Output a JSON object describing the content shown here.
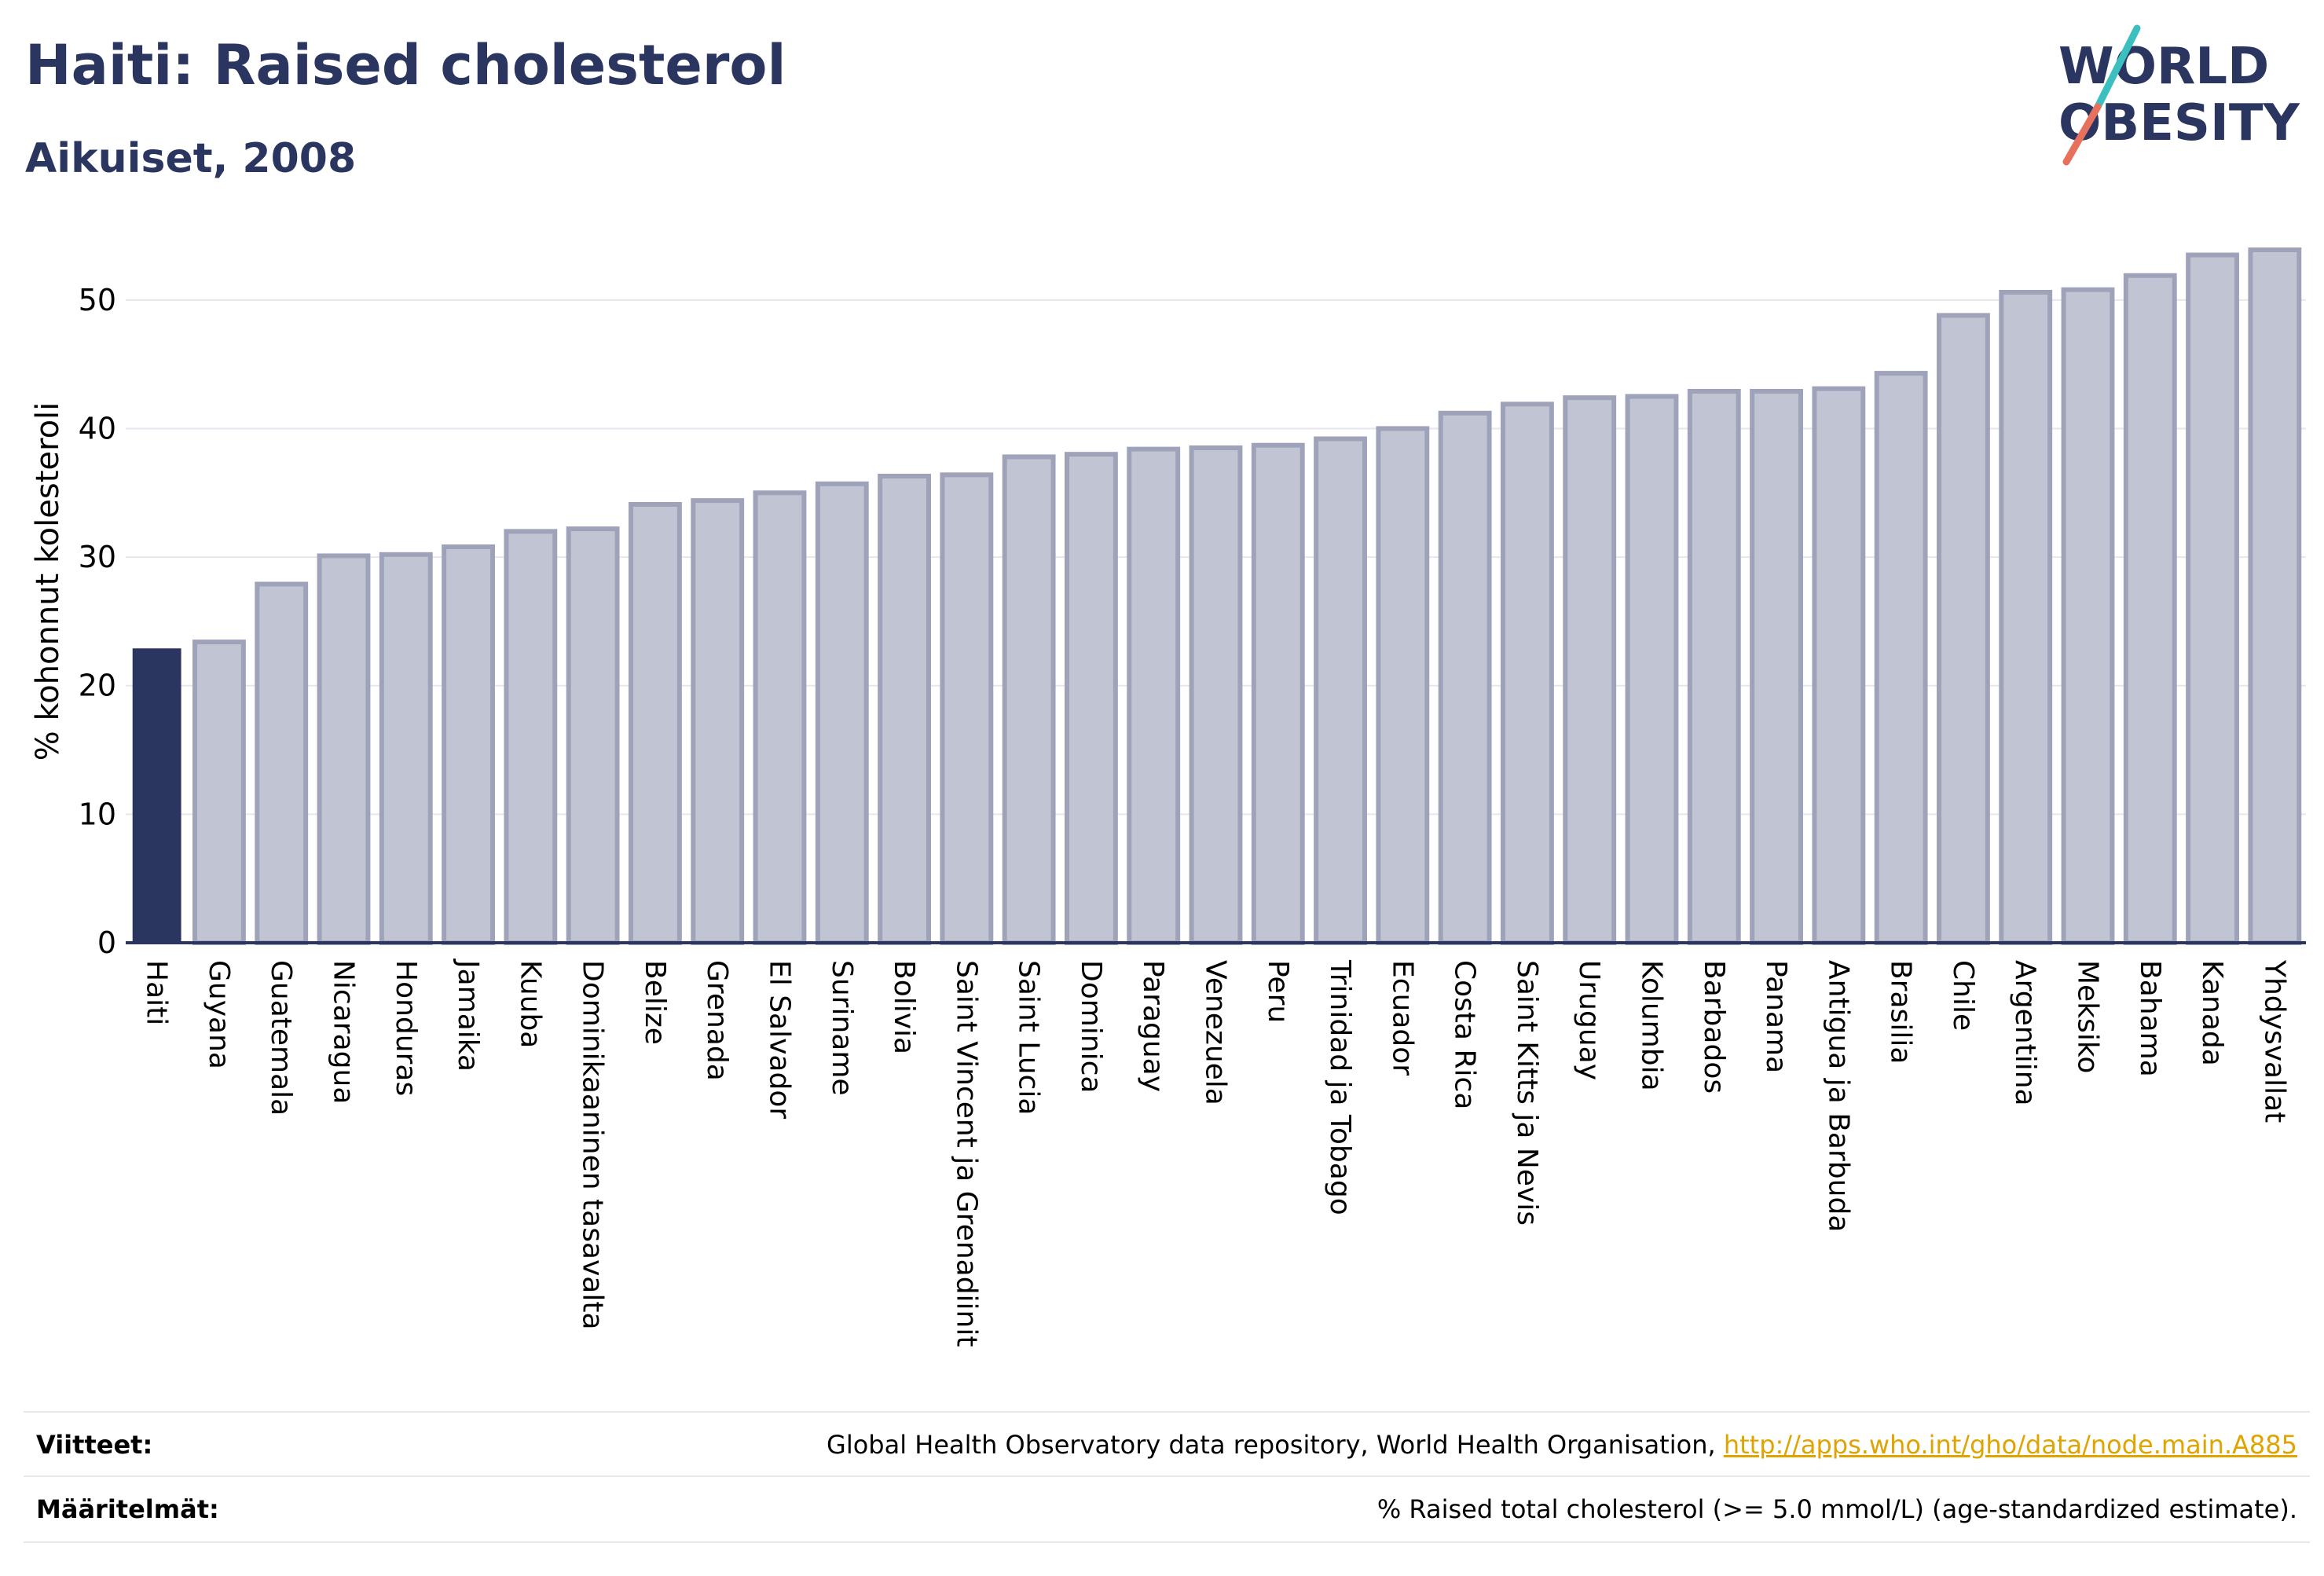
{
  "header": {
    "title": "Haiti: Raised cholesterol",
    "subtitle": "Aikuiset, 2008"
  },
  "logo": {
    "line1": "WORLD",
    "line2": "OBESITY"
  },
  "colors": {
    "highlight": "#2a3560",
    "bar_fill": "#c1c4d2",
    "bar_stroke": "#9fa3ba",
    "grid": "#e6e6ec",
    "axis": "#2a3560",
    "logo_teal": "#3bbfbf",
    "logo_coral": "#e8715e"
  },
  "chart_data": {
    "type": "bar",
    "ylabel": "% kohonnut kolesteroli",
    "xlabel": "",
    "ylim": [
      0,
      55
    ],
    "yticks": [
      0,
      10,
      20,
      30,
      40,
      50
    ],
    "grid": true,
    "highlight_category": "Haiti",
    "categories": [
      "Haiti",
      "Guyana",
      "Guatemala",
      "Nicaragua",
      "Honduras",
      "Jamaika",
      "Kuuba",
      "Dominikaaninen tasavalta",
      "Belize",
      "Grenada",
      "El Salvador",
      "Suriname",
      "Bolivia",
      "Saint Vincent ja Grenadiinit",
      "Saint Lucia",
      "Dominica",
      "Paraguay",
      "Venezuela",
      "Peru",
      "Trinidad ja Tobago",
      "Ecuador",
      "Costa Rica",
      "Saint Kitts ja Nevis",
      "Uruguay",
      "Kolumbia",
      "Barbados",
      "Panama",
      "Antigua ja Barbuda",
      "Brasilia",
      "Chile",
      "Argentiina",
      "Meksiko",
      "Bahama",
      "Kanada",
      "Yhdysvallat"
    ],
    "values": [
      22.9,
      23.4,
      27.9,
      30.1,
      30.2,
      30.8,
      32.0,
      32.2,
      34.1,
      34.4,
      35.0,
      35.7,
      36.3,
      36.4,
      37.8,
      38.0,
      38.4,
      38.5,
      38.7,
      39.2,
      40.0,
      41.2,
      41.9,
      42.4,
      42.5,
      42.9,
      42.9,
      43.1,
      44.3,
      48.8,
      50.6,
      50.8,
      51.9,
      53.5,
      53.9
    ]
  },
  "footer": {
    "references_label": "Viitteet:",
    "references_text": "Global Health Observatory data repository, World Health Organisation,",
    "references_link": "http://apps.who.int/gho/data/node.main.A885",
    "definitions_label": "Määritelmät:",
    "definitions_text": "% Raised total cholesterol (>= 5.0 mmol/L) (age-standardized estimate)."
  }
}
